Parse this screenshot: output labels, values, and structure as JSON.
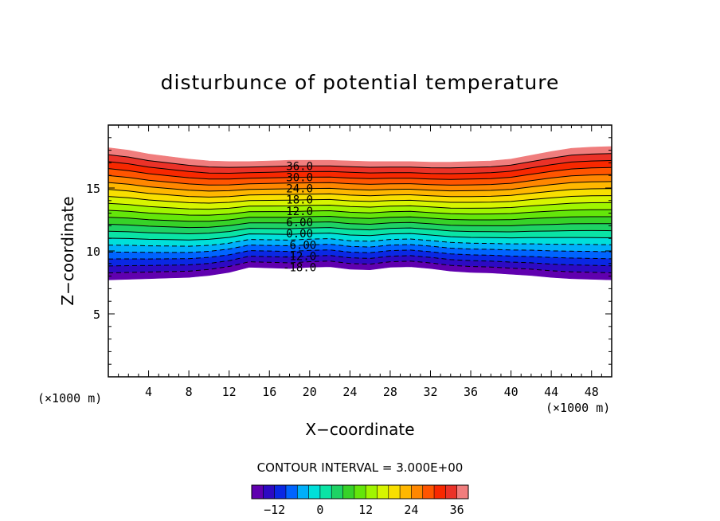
{
  "chart_data": {
    "type": "contour",
    "title": "disturbunce of potential temperature",
    "xlabel": "X−coordinate",
    "ylabel": "Z−coordinate",
    "x_unit_left": "(×1000 m)",
    "x_unit_right": "(×1000 m)",
    "xlim": [
      0,
      50
    ],
    "ylim": [
      0,
      20
    ],
    "xticks": [
      4,
      8,
      12,
      16,
      20,
      24,
      28,
      32,
      36,
      40,
      44,
      48
    ],
    "yticks": [
      5,
      10,
      15
    ],
    "contour_interval_label": "CONTOUR INTERVAL = 3.000E+00",
    "contour_interval": 3,
    "levels_min": -18,
    "levels_max": 39,
    "contour_labels": [
      "-18.0",
      "-12.0",
      "-6.00",
      "0.00",
      "6.00",
      "12.0",
      "18.0",
      "24.0",
      "30.0",
      "36.0"
    ],
    "layer": {
      "x": [
        0,
        2,
        4,
        6,
        8,
        10,
        12,
        14,
        16,
        18,
        20,
        22,
        24,
        26,
        28,
        30,
        32,
        34,
        36,
        38,
        40,
        42,
        44,
        46,
        48,
        50
      ],
      "bottom_z": [
        7.7,
        7.75,
        7.8,
        7.85,
        7.9,
        8.05,
        8.3,
        8.7,
        8.65,
        8.6,
        8.7,
        8.75,
        8.55,
        8.5,
        8.7,
        8.75,
        8.6,
        8.4,
        8.3,
        8.25,
        8.15,
        8.05,
        7.9,
        7.8,
        7.75,
        7.7
      ],
      "top_z": [
        18.2,
        18.0,
        17.7,
        17.5,
        17.3,
        17.15,
        17.1,
        17.1,
        17.15,
        17.2,
        17.2,
        17.2,
        17.15,
        17.1,
        17.1,
        17.1,
        17.05,
        17.05,
        17.1,
        17.15,
        17.3,
        17.6,
        17.9,
        18.15,
        18.25,
        18.3
      ]
    },
    "colorbar_ticks": [
      -12,
      0,
      12,
      24,
      36
    ],
    "colorbar_range": [
      -18,
      39
    ]
  },
  "colors": {
    "negative_contour": "#000000",
    "positive_contour": "#000000",
    "axis": "#000000"
  }
}
